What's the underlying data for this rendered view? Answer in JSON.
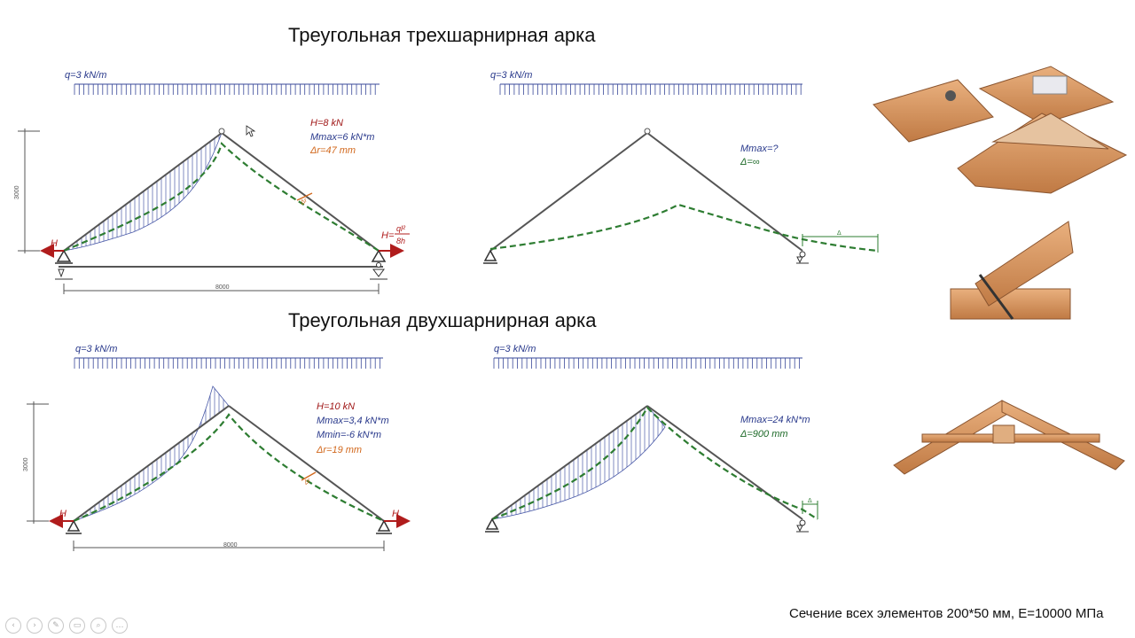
{
  "titles": {
    "three_hinged": "Треугольная трехшарнирная арка",
    "two_hinged": "Треугольная двухшарнирная арка"
  },
  "load_label": "q=3 kN/m",
  "panel1": {
    "H": "H=8 kN",
    "M": "Mmax=6 kN*m",
    "d": "Δr=47 mm",
    "h_left": "H",
    "h_right_num": "ql²",
    "h_right_den": "8h",
    "h_right_pre": "H=",
    "height": "3000",
    "span": "8000",
    "defl_mark": "Δr"
  },
  "panel2": {
    "M": "Mmax=?",
    "d": "Δ=∞",
    "delta": "Δ"
  },
  "panel3": {
    "H": "H=10 kN",
    "M1": "Mmax=3,4 kN*m",
    "M2": "Mmin=-6 kN*m",
    "d": "Δr=19 mm",
    "h_left": "H",
    "h_right": "H",
    "height": "3000",
    "span": "8000",
    "defl_mark": "Δr"
  },
  "panel4": {
    "M": "Mmax=24 kN*m",
    "d": "Δ=900 mm",
    "delta": "Δ"
  },
  "footer": "Сечение всех элементов 200*50 мм, E=10000 МПа",
  "colors": {
    "frame": "#555555",
    "load": "#3a4a9a",
    "deflection": "#2e7d32",
    "reaction": "#b01c1c",
    "annot": "#d2691e",
    "wood": "#d8945a"
  }
}
